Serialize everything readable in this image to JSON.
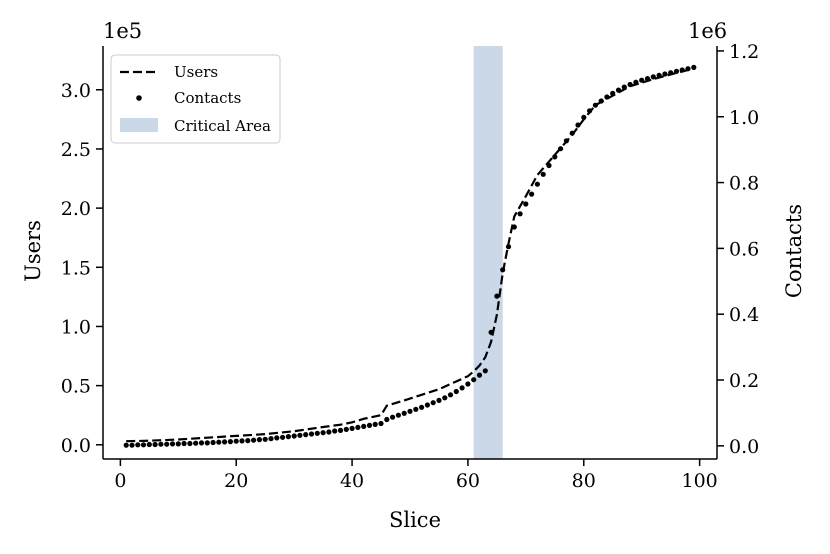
{
  "chart_data": {
    "type": "line",
    "xlabel": "Slice",
    "ylabel_left": "Users",
    "ylabel_right": "Contacts",
    "left_axis_multiplier": "1e5",
    "right_axis_multiplier": "1e6",
    "xlim": [
      -3,
      103
    ],
    "ylim_left": [
      -12000,
      337000
    ],
    "ylim_right": [
      -0.04,
      1.215
    ],
    "x_ticks": [
      0,
      20,
      40,
      60,
      80,
      100
    ],
    "x_tick_labels": [
      "0",
      "20",
      "40",
      "60",
      "80",
      "100"
    ],
    "y_left_ticks": [
      0,
      50000,
      100000,
      150000,
      200000,
      250000,
      300000
    ],
    "y_left_tick_labels": [
      "0.0",
      "0.5",
      "1.0",
      "1.5",
      "2.0",
      "2.5",
      "3.0"
    ],
    "y_right_ticks": [
      0,
      0.2,
      0.4,
      0.6,
      0.8,
      1.0,
      1.2
    ],
    "y_right_tick_labels": [
      "0.0",
      "0.2",
      "0.4",
      "0.6",
      "0.8",
      "1.0",
      "1.2"
    ],
    "grid": false,
    "legend_position": "top-left",
    "critical_area": {
      "label": "Critical Area",
      "x_start": 61,
      "x_end": 66,
      "color": "#cad8e8"
    },
    "series": [
      {
        "name": "Users",
        "axis": "left",
        "style": "dashed",
        "color": "#000000",
        "x": [
          1,
          5,
          10,
          15,
          20,
          25,
          30,
          35,
          38,
          40,
          42,
          45,
          46,
          50,
          55,
          60,
          61,
          62,
          63,
          64,
          65,
          66,
          67,
          68,
          70,
          72,
          75,
          78,
          80,
          82,
          85,
          88,
          90,
          92,
          95,
          99
        ],
        "y": [
          3000,
          3500,
          4500,
          6000,
          7500,
          9000,
          11500,
          15000,
          17000,
          19000,
          22000,
          25000,
          33000,
          39000,
          47000,
          58000,
          62000,
          67000,
          74000,
          87000,
          110000,
          145000,
          170000,
          193000,
          210000,
          228000,
          245000,
          262000,
          275000,
          287000,
          295000,
          303000,
          306000,
          309000,
          313000,
          318000
        ]
      },
      {
        "name": "Contacts",
        "axis": "right",
        "style": "dots",
        "color": "#000000",
        "x": [
          1,
          2,
          3,
          4,
          5,
          6,
          7,
          8,
          9,
          10,
          11,
          12,
          13,
          14,
          15,
          16,
          17,
          18,
          19,
          20,
          21,
          22,
          23,
          24,
          25,
          26,
          27,
          28,
          29,
          30,
          31,
          32,
          33,
          34,
          35,
          36,
          37,
          38,
          39,
          40,
          41,
          42,
          43,
          44,
          45,
          46,
          47,
          48,
          49,
          50,
          51,
          52,
          53,
          54,
          55,
          56,
          57,
          58,
          59,
          60,
          61,
          62,
          63,
          64,
          65,
          66,
          67,
          68,
          69,
          70,
          71,
          72,
          73,
          74,
          75,
          76,
          77,
          78,
          79,
          80,
          81,
          82,
          83,
          84,
          85,
          86,
          87,
          88,
          89,
          90,
          91,
          92,
          93,
          94,
          95,
          96,
          97,
          98,
          99
        ],
        "y": [
          0.002,
          0.002,
          0.003,
          0.003,
          0.004,
          0.004,
          0.005,
          0.005,
          0.006,
          0.006,
          0.007,
          0.007,
          0.008,
          0.009,
          0.009,
          0.01,
          0.011,
          0.012,
          0.013,
          0.014,
          0.015,
          0.016,
          0.017,
          0.019,
          0.02,
          0.022,
          0.024,
          0.026,
          0.028,
          0.03,
          0.032,
          0.034,
          0.036,
          0.038,
          0.04,
          0.042,
          0.045,
          0.047,
          0.05,
          0.053,
          0.056,
          0.059,
          0.062,
          0.065,
          0.068,
          0.08,
          0.087,
          0.093,
          0.099,
          0.105,
          0.111,
          0.117,
          0.124,
          0.131,
          0.138,
          0.146,
          0.155,
          0.165,
          0.176,
          0.188,
          0.201,
          0.215,
          0.228,
          0.345,
          0.455,
          0.535,
          0.605,
          0.665,
          0.705,
          0.735,
          0.765,
          0.795,
          0.825,
          0.852,
          0.878,
          0.903,
          0.927,
          0.95,
          0.975,
          0.998,
          1.018,
          1.035,
          1.048,
          1.06,
          1.071,
          1.081,
          1.09,
          1.098,
          1.105,
          1.111,
          1.116,
          1.121,
          1.126,
          1.13,
          1.134,
          1.138,
          1.142,
          1.146,
          1.15
        ]
      }
    ]
  }
}
